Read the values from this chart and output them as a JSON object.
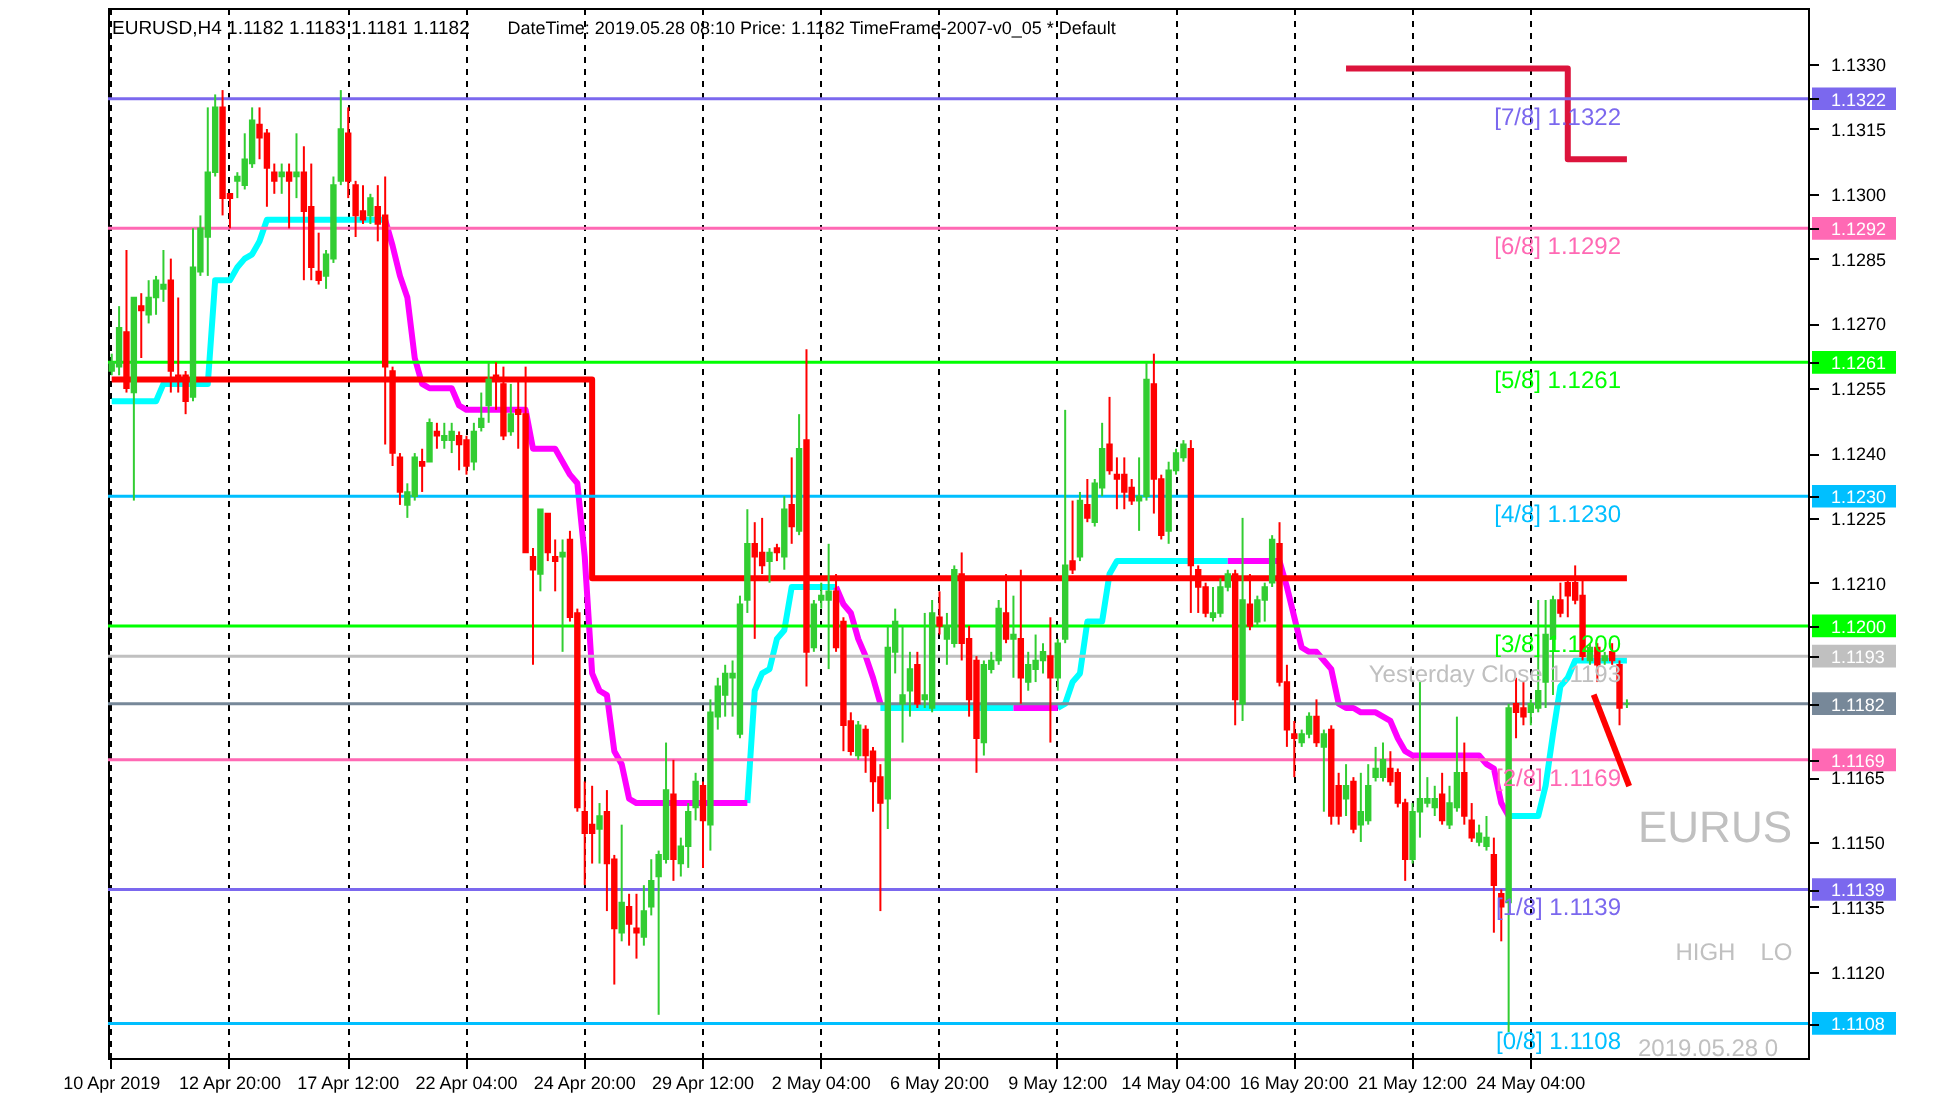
{
  "chart_data": {
    "type": "candlestick",
    "categories": [
      "10 Apr 2019",
      null,
      null,
      null,
      null,
      null,
      null,
      null,
      null,
      null,
      null,
      null,
      null,
      null,
      null,
      null,
      "12 Apr 20:00",
      null,
      null,
      null,
      null,
      null,
      null,
      null,
      null,
      null,
      null,
      null,
      null,
      null,
      null,
      null,
      "17 Apr 12:00",
      null,
      null,
      null,
      null,
      null,
      null,
      null,
      null,
      null,
      null,
      null,
      null,
      null,
      null,
      null,
      "22 Apr 04:00",
      null,
      null,
      null,
      null,
      null,
      null,
      null,
      null,
      null,
      null,
      null,
      null,
      null,
      null,
      null,
      "24 Apr 20:00",
      null,
      null,
      null,
      null,
      null,
      null,
      null,
      null,
      null,
      null,
      null,
      null,
      null,
      null,
      null,
      "29 Apr 12:00",
      null,
      null,
      null,
      null,
      null,
      null,
      null,
      null,
      null,
      null,
      null,
      null,
      null,
      null,
      null,
      "2 May 04:00",
      null,
      null,
      null,
      null,
      null,
      null,
      null,
      null,
      null,
      null,
      null,
      null,
      null,
      null,
      null,
      "6 May 20:00",
      null,
      null,
      null,
      null,
      null,
      null,
      null,
      null,
      null,
      null,
      null,
      null,
      null,
      null,
      null,
      "9 May 12:00",
      null,
      null,
      null,
      null,
      null,
      null,
      null,
      null,
      null,
      null,
      null,
      null,
      null,
      null,
      null,
      "14 May 04:00",
      null,
      null,
      null,
      null,
      null,
      null,
      null,
      null,
      null,
      null,
      null,
      null,
      null,
      null,
      null,
      "16 May 20:00",
      null,
      null,
      null,
      null,
      null,
      null,
      null,
      null,
      null,
      null,
      null,
      null,
      null,
      null,
      null,
      "21 May 12:00",
      null,
      null,
      null,
      null,
      null,
      null,
      null,
      null,
      null,
      null,
      null,
      null,
      null,
      null,
      null,
      "24 May 04:00",
      null,
      null,
      null,
      null,
      null,
      null,
      null,
      null,
      null,
      null,
      null,
      null,
      null,
      null,
      null,
      null,
      null,
      null,
      null,
      null,
      null,
      null,
      null,
      null,
      null,
      null,
      null,
      null,
      null,
      null,
      null,
      null,
      null,
      null,
      null,
      null,
      null
    ],
    "ohlc": [
      [
        1.1259,
        1.1263,
        1.1258,
        1.1261
      ],
      [
        1.126,
        1.1274,
        1.1258,
        1.1269
      ],
      [
        1.1268,
        1.1287,
        1.1254,
        1.1255
      ],
      [
        1.1254,
        1.1276,
        1.1229,
        1.1276
      ],
      [
        1.1274,
        1.1277,
        1.1262,
        1.1273
      ],
      [
        1.1272,
        1.128,
        1.127,
        1.1276
      ],
      [
        1.1276,
        1.1281,
        1.1272,
        1.128
      ],
      [
        1.1278,
        1.1287,
        1.1275,
        1.1279
      ],
      [
        1.128,
        1.1285,
        1.1254,
        1.1259
      ],
      [
        1.1258,
        1.1276,
        1.1254,
        1.1257
      ],
      [
        1.1258,
        1.1259,
        1.1249,
        1.1252
      ],
      [
        1.1253,
        1.1292,
        1.1252,
        1.1283
      ],
      [
        1.1282,
        1.1295,
        1.1281,
        1.1292
      ],
      [
        1.129,
        1.132,
        1.1281,
        1.1305
      ],
      [
        1.1305,
        1.1323,
        1.1304,
        1.132
      ],
      [
        1.132,
        1.1324,
        1.1295,
        1.1299
      ],
      [
        1.13,
        1.13,
        1.1292,
        1.1299
      ],
      [
        1.1303,
        1.1305,
        1.1299,
        1.1304
      ],
      [
        1.1302,
        1.1314,
        1.1301,
        1.1308
      ],
      [
        1.1307,
        1.132,
        1.1306,
        1.1317
      ],
      [
        1.1316,
        1.132,
        1.1308,
        1.1313
      ],
      [
        1.1314,
        1.1315,
        1.1297,
        1.1306
      ],
      [
        1.1305,
        1.1307,
        1.13,
        1.1303
      ],
      [
        1.1304,
        1.1307,
        1.13,
        1.1305
      ],
      [
        1.1305,
        1.1307,
        1.1292,
        1.1303
      ],
      [
        1.1304,
        1.1314,
        1.1299,
        1.1305
      ],
      [
        1.1305,
        1.1311,
        1.128,
        1.1296
      ],
      [
        1.1297,
        1.1307,
        1.128,
        1.1283
      ],
      [
        1.1282,
        1.1291,
        1.1279,
        1.128
      ],
      [
        1.1281,
        1.1287,
        1.1278,
        1.1286
      ],
      [
        1.1285,
        1.1304,
        1.1284,
        1.1302
      ],
      [
        1.1303,
        1.1324,
        1.1302,
        1.1315
      ],
      [
        1.1314,
        1.132,
        1.1299,
        1.1303
      ],
      [
        1.1302,
        1.1303,
        1.129,
        1.1295
      ],
      [
        1.1296,
        1.1302,
        1.1293,
        1.1294
      ],
      [
        1.1295,
        1.13,
        1.1293,
        1.1299
      ],
      [
        1.1297,
        1.1302,
        1.1289,
        1.1293
      ],
      [
        1.1295,
        1.1304,
        1.1242,
        1.126
      ],
      [
        1.1259,
        1.126,
        1.1237,
        1.124
      ],
      [
        1.1239,
        1.124,
        1.1228,
        1.1231
      ],
      [
        1.1228,
        1.1233,
        1.1225,
        1.1231
      ],
      [
        1.123,
        1.124,
        1.1229,
        1.1239
      ],
      [
        1.1238,
        1.1241,
        1.1231,
        1.1237
      ],
      [
        1.1238,
        1.1248,
        1.1238,
        1.1247
      ],
      [
        1.1245,
        1.1247,
        1.1241,
        1.1244
      ],
      [
        1.1243,
        1.1247,
        1.1241,
        1.1244
      ],
      [
        1.1243,
        1.1247,
        1.124,
        1.1245
      ],
      [
        1.1244,
        1.1245,
        1.1236,
        1.1242
      ],
      [
        1.1243,
        1.1244,
        1.1235,
        1.1237
      ],
      [
        1.1238,
        1.1247,
        1.1236,
        1.1245
      ],
      [
        1.1246,
        1.1254,
        1.1245,
        1.1248
      ],
      [
        1.1251,
        1.1261,
        1.1247,
        1.1257
      ],
      [
        1.1258,
        1.1261,
        1.125,
        1.1257
      ],
      [
        1.1256,
        1.126,
        1.1243,
        1.1244
      ],
      [
        1.1245,
        1.1256,
        1.1244,
        1.1249
      ],
      [
        1.125,
        1.1257,
        1.1241,
        1.1249
      ],
      [
        1.1249,
        1.126,
        1.1217,
        1.1217
      ],
      [
        1.1216,
        1.1218,
        1.1191,
        1.1213
      ],
      [
        1.1212,
        1.1227,
        1.1208,
        1.1227
      ],
      [
        1.1226,
        1.1226,
        1.1215,
        1.1217
      ],
      [
        1.1216,
        1.122,
        1.1208,
        1.1215
      ],
      [
        1.1216,
        1.122,
        1.1194,
        1.1217
      ],
      [
        1.122,
        1.1222,
        1.1201,
        1.1202
      ],
      [
        1.1203,
        1.1204,
        1.1157,
        1.1158
      ],
      [
        1.1157,
        1.1164,
        1.114,
        1.1152
      ],
      [
        1.1154,
        1.1163,
        1.1145,
        1.1152
      ],
      [
        1.1153,
        1.1159,
        1.1145,
        1.1156
      ],
      [
        1.1157,
        1.1162,
        1.1134,
        1.1145
      ],
      [
        1.1146,
        1.1147,
        1.1117,
        1.113
      ],
      [
        1.1129,
        1.1154,
        1.1127,
        1.1136
      ],
      [
        1.1135,
        1.1138,
        1.1126,
        1.1131
      ],
      [
        1.113,
        1.1138,
        1.1123,
        1.1129
      ],
      [
        1.1128,
        1.114,
        1.1126,
        1.1134
      ],
      [
        1.1135,
        1.1146,
        1.1133,
        1.1141
      ],
      [
        1.1142,
        1.1148,
        1.111,
        1.1147
      ],
      [
        1.1146,
        1.1173,
        1.1145,
        1.1162
      ],
      [
        1.1161,
        1.1169,
        1.1141,
        1.1146
      ],
      [
        1.1145,
        1.1151,
        1.1142,
        1.1149
      ],
      [
        1.1149,
        1.1159,
        1.1144,
        1.1157
      ],
      [
        1.1158,
        1.1166,
        1.1155,
        1.1164
      ],
      [
        1.1163,
        1.1164,
        1.1144,
        1.1155
      ],
      [
        1.1154,
        1.1183,
        1.1148,
        1.118
      ],
      [
        1.1179,
        1.1188,
        1.1176,
        1.1186
      ],
      [
        1.1184,
        1.1191,
        1.1179,
        1.1189
      ],
      [
        1.1188,
        1.1192,
        1.1179,
        1.1189
      ],
      [
        1.1175,
        1.1207,
        1.1174,
        1.1205
      ],
      [
        1.1206,
        1.1227,
        1.1203,
        1.1219
      ],
      [
        1.1219,
        1.1224,
        1.1197,
        1.1216
      ],
      [
        1.1217,
        1.1225,
        1.1212,
        1.1214
      ],
      [
        1.1215,
        1.1218,
        1.121,
        1.1217
      ],
      [
        1.1218,
        1.1219,
        1.1215,
        1.1217
      ],
      [
        1.1216,
        1.123,
        1.1213,
        1.1227
      ],
      [
        1.1228,
        1.1239,
        1.1219,
        1.1223
      ],
      [
        1.1222,
        1.1249,
        1.1221,
        1.1241
      ],
      [
        1.1243,
        1.1264,
        1.1186,
        1.1194
      ],
      [
        1.1195,
        1.1206,
        1.1194,
        1.1205
      ],
      [
        1.1206,
        1.121,
        1.1204,
        1.1207
      ],
      [
        1.1206,
        1.1219,
        1.119,
        1.1208
      ],
      [
        1.1208,
        1.1212,
        1.1194,
        1.1195
      ],
      [
        1.1201,
        1.1202,
        1.1171,
        1.1177
      ],
      [
        1.1178,
        1.118,
        1.117,
        1.1171
      ],
      [
        1.117,
        1.1178,
        1.1169,
        1.1177
      ],
      [
        1.1176,
        1.1177,
        1.1166,
        1.117
      ],
      [
        1.1171,
        1.1172,
        1.1157,
        1.1164
      ],
      [
        1.1165,
        1.1168,
        1.1134,
        1.1159
      ],
      [
        1.116,
        1.12,
        1.1153,
        1.1195
      ],
      [
        1.1194,
        1.1204,
        1.1189,
        1.1201
      ],
      [
        1.1182,
        1.12,
        1.1173,
        1.1184
      ],
      [
        1.1185,
        1.1194,
        1.1179,
        1.119
      ],
      [
        1.1191,
        1.1194,
        1.1181,
        1.1182
      ],
      [
        1.1183,
        1.1203,
        1.1181,
        1.1184
      ],
      [
        1.1181,
        1.1206,
        1.118,
        1.1203
      ],
      [
        1.1202,
        1.1208,
        1.1198,
        1.12
      ],
      [
        1.1197,
        1.1203,
        1.1191,
        1.12
      ],
      [
        1.1196,
        1.1214,
        1.1195,
        1.1213
      ],
      [
        1.1212,
        1.1217,
        1.1192,
        1.1196
      ],
      [
        1.1197,
        1.12,
        1.1179,
        1.1183
      ],
      [
        1.1192,
        1.1193,
        1.1166,
        1.1174
      ],
      [
        1.1173,
        1.1192,
        1.117,
        1.1191
      ],
      [
        1.119,
        1.1194,
        1.1189,
        1.1192
      ],
      [
        1.1192,
        1.1206,
        1.1191,
        1.1204
      ],
      [
        1.1203,
        1.1212,
        1.1196,
        1.1197
      ],
      [
        1.1197,
        1.1207,
        1.1188,
        1.1198
      ],
      [
        1.1197,
        1.1213,
        1.1182,
        1.1188
      ],
      [
        1.1187,
        1.1194,
        1.1185,
        1.1191
      ],
      [
        1.119,
        1.1198,
        1.1187,
        1.1192
      ],
      [
        1.1192,
        1.1196,
        1.1189,
        1.1194
      ],
      [
        1.1193,
        1.1202,
        1.1173,
        1.1188
      ],
      [
        1.1188,
        1.1197,
        1.1185,
        1.1196
      ],
      [
        1.1197,
        1.125,
        1.1196,
        1.1214
      ],
      [
        1.1215,
        1.1229,
        1.1212,
        1.1213
      ],
      [
        1.1216,
        1.1231,
        1.1215,
        1.1229
      ],
      [
        1.1228,
        1.1234,
        1.1224,
        1.1225
      ],
      [
        1.1224,
        1.1234,
        1.1223,
        1.1233
      ],
      [
        1.1232,
        1.1247,
        1.123,
        1.1241
      ],
      [
        1.1242,
        1.1253,
        1.1235,
        1.1236
      ],
      [
        1.1235,
        1.1239,
        1.1227,
        1.1234
      ],
      [
        1.1235,
        1.1239,
        1.1227,
        1.1231
      ],
      [
        1.1232,
        1.1234,
        1.1228,
        1.1229
      ],
      [
        1.1229,
        1.1239,
        1.1222,
        1.123
      ],
      [
        1.123,
        1.1261,
        1.1229,
        1.1257
      ],
      [
        1.1256,
        1.1263,
        1.1226,
        1.1234
      ],
      [
        1.1234,
        1.1235,
        1.122,
        1.1221
      ],
      [
        1.1222,
        1.1238,
        1.1219,
        1.1236
      ],
      [
        1.1236,
        1.1241,
        1.1235,
        1.124
      ],
      [
        1.1239,
        1.1243,
        1.1238,
        1.1242
      ],
      [
        1.1241,
        1.1243,
        1.1203,
        1.1214
      ],
      [
        1.1213,
        1.1214,
        1.1203,
        1.1209
      ],
      [
        1.1209,
        1.121,
        1.1202,
        1.1203
      ],
      [
        1.1202,
        1.1209,
        1.1201,
        1.1203
      ],
      [
        1.1203,
        1.1211,
        1.1202,
        1.1209
      ],
      [
        1.1209,
        1.1213,
        1.1208,
        1.1212
      ],
      [
        1.1212,
        1.1213,
        1.1177,
        1.1183
      ],
      [
        1.1182,
        1.1225,
        1.1178,
        1.1206
      ],
      [
        1.1205,
        1.1212,
        1.1199,
        1.12
      ],
      [
        1.1201,
        1.1207,
        1.12,
        1.1206
      ],
      [
        1.1206,
        1.121,
        1.1201,
        1.1209
      ],
      [
        1.121,
        1.1221,
        1.1209,
        1.122
      ],
      [
        1.1219,
        1.1224,
        1.1186,
        1.1187
      ],
      [
        1.1187,
        1.1191,
        1.1172,
        1.1176
      ],
      [
        1.1175,
        1.1178,
        1.1165,
        1.1174
      ],
      [
        1.1173,
        1.1176,
        1.1172,
        1.1175
      ],
      [
        1.1175,
        1.118,
        1.1174,
        1.1179
      ],
      [
        1.1179,
        1.1183,
        1.1172,
        1.1173
      ],
      [
        1.1172,
        1.1176,
        1.1157,
        1.1175
      ],
      [
        1.1176,
        1.1177,
        1.1154,
        1.1156
      ],
      [
        1.1163,
        1.1166,
        1.1154,
        1.1156
      ],
      [
        1.116,
        1.1168,
        1.1156,
        1.1163
      ],
      [
        1.1164,
        1.1165,
        1.1152,
        1.1153
      ],
      [
        1.1154,
        1.1166,
        1.115,
        1.1157
      ],
      [
        1.1155,
        1.1168,
        1.1154,
        1.1163
      ],
      [
        1.1165,
        1.1172,
        1.1164,
        1.1167
      ],
      [
        1.1165,
        1.1173,
        1.1164,
        1.1169
      ],
      [
        1.1167,
        1.1171,
        1.1163,
        1.1164
      ],
      [
        1.1166,
        1.1167,
        1.1158,
        1.1159
      ],
      [
        1.1159,
        1.116,
        1.1141,
        1.1146
      ],
      [
        1.1146,
        1.1159,
        1.1145,
        1.1157
      ],
      [
        1.1157,
        1.1187,
        1.1151,
        1.116
      ],
      [
        1.1159,
        1.1165,
        1.1158,
        1.116
      ],
      [
        1.1158,
        1.1163,
        1.1156,
        1.116
      ],
      [
        1.1161,
        1.1166,
        1.1154,
        1.1155
      ],
      [
        1.1154,
        1.1163,
        1.1153,
        1.1159
      ],
      [
        1.1158,
        1.1179,
        1.1157,
        1.1166
      ],
      [
        1.1166,
        1.1173,
        1.1154,
        1.1156
      ],
      [
        1.1155,
        1.1159,
        1.115,
        1.1151
      ],
      [
        1.115,
        1.1154,
        1.1149,
        1.1152
      ],
      [
        1.1149,
        1.1156,
        1.1148,
        1.1151
      ],
      [
        1.1147,
        1.1151,
        1.1129,
        1.114
      ],
      [
        1.1138,
        1.1139,
        1.1127,
        1.1135
      ],
      [
        1.1136,
        1.1182,
        1.1106,
        1.1181
      ],
      [
        1.1182,
        1.1188,
        1.1174,
        1.118
      ],
      [
        1.1181,
        1.1187,
        1.1177,
        1.1179
      ],
      [
        1.118,
        1.1183,
        1.1177,
        1.1182
      ],
      [
        1.1181,
        1.1206,
        1.118,
        1.1185
      ],
      [
        1.1187,
        1.1206,
        1.1181,
        1.1198
      ],
      [
        1.1197,
        1.1207,
        1.1184,
        1.1206
      ],
      [
        1.1206,
        1.121,
        1.1202,
        1.1203
      ],
      [
        1.121,
        1.1211,
        1.1202,
        1.1207
      ],
      [
        1.121,
        1.1214,
        1.1205,
        1.1206
      ],
      [
        1.1207,
        1.1211,
        1.1192,
        1.1193
      ],
      [
        1.1192,
        1.1196,
        1.1191,
        1.1195
      ],
      [
        1.1195,
        1.1196,
        1.1187,
        1.1191
      ],
      [
        1.1192,
        1.1194,
        1.1191,
        1.1193
      ],
      [
        1.1194,
        1.1196,
        1.1191,
        1.1192
      ],
      [
        1.1191,
        1.1192,
        1.1177,
        1.1181
      ],
      [
        1.1182,
        1.1183,
        1.1181,
        1.1182
      ],
      null,
      null,
      null,
      null,
      null,
      null,
      null,
      null,
      null,
      null,
      null,
      null,
      null,
      null,
      null,
      null,
      null,
      null,
      null,
      null,
      null,
      null,
      null,
      null
    ],
    "series": [
      {
        "type": "line",
        "color": "#00ffff",
        "values": [
          1.1252,
          1.1252,
          1.1252,
          1.1252,
          1.1252,
          1.1252,
          1.1252,
          1.1256,
          1.1256,
          1.1256,
          1.1256,
          1.1256,
          1.1256,
          1.1256,
          1.128,
          1.128,
          1.128,
          1.1283,
          1.1285,
          1.1286,
          1.1289,
          1.1294,
          1.1294,
          1.1294,
          1.1294,
          1.1294,
          1.1294,
          1.1294,
          1.1294,
          1.1294,
          1.1294,
          1.1294,
          1.1294,
          1.1294,
          1.1294,
          1.1294,
          1.1294,
          1.1294,
          null,
          null,
          null,
          null,
          null,
          null,
          null,
          null,
          null,
          null,
          null,
          null,
          null,
          null,
          null,
          null,
          null,
          null,
          null,
          null,
          null,
          null,
          null,
          null,
          null,
          null,
          null,
          null,
          null,
          null,
          null,
          null,
          null,
          null,
          null,
          null,
          null,
          null,
          null,
          null,
          null,
          null,
          null,
          null,
          null,
          null,
          null,
          null,
          1.1159,
          1.1185,
          1.1189,
          1.119,
          1.1197,
          1.1199,
          1.1209,
          1.1209,
          1.1209,
          1.1209,
          1.1209,
          1.1209,
          1.1209,
          null,
          null,
          null,
          null,
          null,
          1.1181,
          1.1181,
          1.1181,
          1.1181,
          1.1181,
          1.1181,
          1.1181,
          1.1181,
          1.1181,
          1.1181,
          1.1181,
          1.1181,
          1.1181,
          1.1181,
          1.1181,
          1.1181,
          1.1181,
          1.1181,
          1.1181,
          null,
          null,
          null,
          null,
          null,
          1.1181,
          1.1182,
          1.1187,
          1.1189,
          1.1201,
          1.1201,
          1.1201,
          1.1212,
          1.1215,
          1.1215,
          1.1215,
          1.1215,
          1.1215,
          1.1215,
          1.1215,
          1.1215,
          1.1215,
          1.1215,
          1.1215,
          1.1215,
          1.1215,
          1.1215,
          1.1215,
          1.1215,
          null,
          null,
          null,
          null,
          null,
          null,
          null,
          null,
          null,
          null,
          null,
          null,
          null,
          null,
          null,
          null,
          null,
          null,
          null,
          null,
          null,
          null,
          null,
          null,
          null,
          null,
          null,
          null,
          null,
          null,
          null,
          null,
          null,
          null,
          null,
          null,
          null,
          1.1156,
          1.1156,
          1.1156,
          1.1156,
          1.1156,
          1.1163,
          1.1175,
          1.1186,
          1.1188,
          1.1192,
          1.1192,
          1.1192,
          1.1192,
          1.1192,
          1.1192,
          1.1192,
          1.1192,
          null,
          null,
          null,
          null,
          null,
          null,
          null,
          null,
          null,
          null,
          null,
          null,
          null,
          null,
          null,
          null,
          null,
          null,
          null,
          null,
          null,
          null,
          null,
          null
        ]
      },
      {
        "type": "line",
        "color": "#ff00ff",
        "values": [
          null,
          null,
          null,
          null,
          null,
          null,
          null,
          null,
          null,
          null,
          null,
          null,
          null,
          null,
          null,
          null,
          null,
          null,
          null,
          null,
          null,
          null,
          null,
          null,
          null,
          null,
          null,
          null,
          null,
          null,
          null,
          null,
          null,
          null,
          null,
          null,
          null,
          1.1294,
          1.1288,
          1.1281,
          1.1276,
          1.1262,
          1.1256,
          1.1255,
          1.1255,
          1.1255,
          1.1255,
          1.1251,
          1.125,
          1.125,
          1.125,
          1.125,
          1.125,
          1.125,
          1.125,
          1.125,
          1.125,
          1.1241,
          1.1241,
          1.1241,
          1.1241,
          1.1238,
          1.1235,
          1.1233,
          1.1216,
          1.1189,
          1.1185,
          1.1184,
          1.1171,
          1.1168,
          1.116,
          1.1159,
          1.1159,
          1.1159,
          1.1159,
          1.1159,
          1.1159,
          1.1159,
          1.1159,
          1.1159,
          1.1159,
          1.1159,
          1.1159,
          1.1159,
          1.1159,
          1.1159,
          1.1159,
          null,
          null,
          null,
          null,
          null,
          null,
          null,
          null,
          null,
          null,
          null,
          1.1209,
          1.1205,
          1.1203,
          1.1197,
          1.1193,
          1.1188,
          1.1182,
          null,
          null,
          null,
          null,
          null,
          null,
          null,
          null,
          null,
          null,
          null,
          null,
          null,
          null,
          null,
          null,
          null,
          1.1181,
          1.1181,
          1.1181,
          1.1181,
          1.1181,
          1.1181,
          1.1181,
          null,
          null,
          null,
          null,
          null,
          null,
          null,
          null,
          null,
          null,
          null,
          null,
          null,
          null,
          null,
          null,
          null,
          null,
          null,
          null,
          null,
          null,
          1.1215,
          1.1215,
          1.1215,
          1.1215,
          1.1215,
          1.1215,
          1.1215,
          1.1215,
          1.1209,
          1.1202,
          1.1195,
          1.1194,
          1.1194,
          1.1192,
          1.119,
          1.1182,
          1.1181,
          1.1181,
          1.118,
          1.118,
          1.118,
          1.1179,
          1.1178,
          1.1174,
          1.1171,
          1.117,
          1.117,
          1.117,
          1.117,
          1.117,
          1.117,
          1.117,
          1.117,
          1.117,
          1.117,
          1.1168,
          1.1167,
          1.1159,
          1.1156,
          null,
          null,
          null,
          null,
          null,
          null,
          null,
          null,
          null,
          null,
          null,
          null,
          null,
          null,
          null,
          null,
          null,
          null,
          null,
          null,
          null,
          null,
          null,
          null,
          null,
          null,
          null,
          null,
          null,
          null,
          null,
          null,
          null,
          null,
          null,
          null,
          null,
          null,
          null,
          null
        ]
      },
      {
        "type": "step",
        "color": "#ff0000",
        "values": [
          1.1257,
          1.1257,
          1.1257,
          1.1257,
          1.1257,
          1.1257,
          1.1257,
          1.1257,
          1.1257,
          1.1257,
          1.1257,
          1.1257,
          1.1257,
          1.1257,
          1.1257,
          1.1257,
          1.1257,
          1.1257,
          1.1257,
          1.1257,
          1.1257,
          1.1257,
          1.1257,
          1.1257,
          1.1257,
          1.1257,
          1.1257,
          1.1257,
          1.1257,
          1.1257,
          1.1257,
          1.1257,
          1.1257,
          1.1257,
          1.1257,
          1.1257,
          1.1257,
          1.1257,
          1.1257,
          1.1257,
          1.1257,
          1.1257,
          1.1257,
          1.1257,
          1.1257,
          1.1257,
          1.1257,
          1.1257,
          1.1257,
          1.1257,
          1.1257,
          1.1257,
          1.1257,
          1.1257,
          1.1257,
          1.1257,
          1.1257,
          1.1257,
          1.1257,
          1.1257,
          1.1257,
          1.1257,
          1.1257,
          1.1257,
          1.1257,
          1.1211,
          1.1211,
          1.1211,
          1.1211,
          1.1211,
          1.1211,
          1.1211,
          1.1211,
          1.1211,
          1.1211,
          1.1211,
          1.1211,
          1.1211,
          1.1211,
          1.1211,
          1.1211,
          1.1211,
          1.1211,
          1.1211,
          1.1211,
          1.1211,
          1.1211,
          1.1211,
          1.1211,
          1.1211,
          1.1211,
          1.1211,
          1.1211,
          1.1211,
          1.1211,
          1.1211,
          1.1211,
          1.1211,
          1.1211,
          1.1211,
          1.1211,
          1.1211,
          1.1211,
          1.1211,
          1.1211,
          1.1211,
          1.1211,
          1.1211,
          1.1211,
          1.1211,
          1.1211,
          1.1211,
          1.1211,
          1.1211,
          1.1211,
          1.1211,
          1.1211,
          1.1211,
          1.1211,
          1.1211,
          1.1211,
          1.1211,
          1.1211,
          1.1211,
          1.1211,
          1.1211,
          1.1211,
          1.1211,
          1.1211,
          1.1211,
          1.1211,
          1.1211,
          1.1211,
          1.1211,
          1.1211,
          1.1211,
          1.1211,
          1.1211,
          1.1211,
          1.1211,
          1.1211,
          1.1211,
          1.1211,
          1.1211,
          1.1211,
          1.1211,
          1.1211,
          1.1211,
          1.1211,
          1.1211,
          1.1211,
          1.1211,
          1.1211,
          1.1211,
          1.1211,
          1.1211,
          1.1211,
          1.1211,
          1.1211,
          1.1211,
          1.1211,
          1.1211,
          1.1211,
          1.1211,
          1.1211,
          1.1211,
          1.1211,
          1.1211,
          1.1211,
          1.1211,
          1.1211,
          1.1211,
          1.1211,
          1.1211,
          1.1211,
          1.1211,
          1.1211,
          1.1211,
          1.1211,
          1.1211,
          1.1211,
          1.1211,
          1.1211,
          1.1211,
          1.1211,
          1.1211,
          1.1211,
          1.1211,
          1.1211,
          1.1211,
          1.1211,
          1.1211,
          1.1211,
          1.1211,
          1.1211,
          1.1211,
          1.1211,
          1.1211,
          1.1211,
          1.1211,
          1.1211,
          1.1211,
          1.1211,
          1.1211,
          1.1211,
          1.1211,
          null,
          null,
          null,
          null,
          null,
          null,
          null,
          null,
          null,
          null,
          null,
          null,
          null,
          null,
          null,
          null,
          null,
          null,
          null,
          null,
          null,
          null,
          null,
          null
        ]
      },
      {
        "type": "step",
        "color": "#dc143c",
        "values": [
          null,
          null,
          null,
          null,
          null,
          null,
          null,
          null,
          null,
          null,
          null,
          null,
          null,
          null,
          null,
          null,
          null,
          null,
          null,
          null,
          null,
          null,
          null,
          null,
          null,
          null,
          null,
          null,
          null,
          null,
          null,
          null,
          null,
          null,
          null,
          null,
          null,
          null,
          null,
          null,
          null,
          null,
          null,
          null,
          null,
          null,
          null,
          null,
          null,
          null,
          null,
          null,
          null,
          null,
          null,
          null,
          null,
          null,
          null,
          null,
          null,
          null,
          null,
          null,
          null,
          null,
          null,
          null,
          null,
          null,
          null,
          null,
          null,
          null,
          null,
          null,
          null,
          null,
          null,
          null,
          null,
          null,
          null,
          null,
          null,
          null,
          null,
          null,
          null,
          null,
          null,
          null,
          null,
          null,
          null,
          null,
          null,
          null,
          null,
          null,
          null,
          null,
          null,
          null,
          null,
          null,
          null,
          null,
          null,
          null,
          null,
          null,
          null,
          null,
          null,
          null,
          null,
          null,
          null,
          null,
          null,
          null,
          null,
          null,
          null,
          null,
          null,
          null,
          null,
          null,
          null,
          null,
          null,
          null,
          null,
          null,
          null,
          null,
          null,
          null,
          null,
          null,
          null,
          null,
          null,
          null,
          null,
          null,
          null,
          null,
          null,
          null,
          null,
          null,
          null,
          null,
          null,
          null,
          null,
          null,
          null,
          null,
          null,
          null,
          null,
          null,
          null,
          1.1329,
          1.1329,
          1.1329,
          1.1329,
          1.1329,
          1.1329,
          1.1329,
          1.1329,
          1.1329,
          1.1329,
          1.1329,
          1.1329,
          1.1329,
          1.1329,
          1.1329,
          1.1329,
          1.1329,
          1.1329,
          1.1329,
          1.1329,
          1.1329,
          1.1329,
          1.1329,
          1.1329,
          1.1329,
          1.1329,
          1.1329,
          1.1329,
          1.1329,
          1.1329,
          1.1308,
          1.1308,
          1.1308,
          1.1308,
          1.1308,
          1.1308,
          1.1308,
          1.1308,
          1.1308,
          null,
          null,
          null,
          null,
          null,
          null,
          null,
          null,
          null,
          null,
          null,
          null,
          null,
          null,
          null,
          null,
          null,
          null,
          null,
          null,
          null,
          null,
          null,
          null
        ]
      }
    ],
    "ref_lines": [
      {
        "axis": "y",
        "value": 1.1322,
        "label": "[7/8] 1.1322",
        "color": "#7b68ee"
      },
      {
        "axis": "y",
        "value": 1.1292,
        "label": "[6/8] 1.1292",
        "color": "#ff69b4"
      },
      {
        "axis": "y",
        "value": 1.1261,
        "label": "[5/8] 1.1261",
        "color": "#00ff00"
      },
      {
        "axis": "y",
        "value": 1.123,
        "label": "[4/8] 1.1230",
        "color": "#00bfff"
      },
      {
        "axis": "y",
        "value": 1.12,
        "label": "[3/8] 1.1200",
        "color": "#00ff00"
      },
      {
        "axis": "y",
        "value": 1.1193,
        "label": "Yesterday Close 1.1193",
        "color": "#c0c0c0"
      },
      {
        "axis": "y",
        "value": 1.1182,
        "label": null,
        "color": "#778899"
      },
      {
        "axis": "y",
        "value": 1.1169,
        "label": "[2/8] 1.1169",
        "color": "#ff69b4"
      },
      {
        "axis": "y",
        "value": 1.1139,
        "label": "[1/8] 1.1139",
        "color": "#7b68ee"
      },
      {
        "axis": "y",
        "value": 1.1108,
        "label": "[0/8] 1.1108",
        "color": "#00bfff"
      }
    ],
    "annotations": [
      "EURUSD,H4  1.1182 1.1183 1.1181 1.1182",
      "DateTime: 2019.05.28 08:10   Price: 1.1182   TimeFrame-2007-v0_05   *  Default",
      "EURUS",
      "HIGH",
      "LO",
      "2019.05.28 0"
    ],
    "ylim": [
      1.11,
      1.1343
    ],
    "yticks": [
      1.1108,
      {
        "value": 1.112,
        "label": "1.1120"
      },
      1.1135,
      1.1139,
      {
        "value": 1.115,
        "label": "1.1150"
      },
      1.1165,
      1.1169,
      1.1182,
      1.1193,
      {
        "value": 1.12,
        "label": "1.1200"
      },
      {
        "value": 1.121,
        "label": "1.1210"
      },
      1.1225,
      {
        "value": 1.123,
        "label": "1.1230"
      },
      {
        "value": 1.124,
        "label": "1.1240"
      },
      1.1255,
      1.1261,
      {
        "value": 1.127,
        "label": "1.1270"
      },
      1.1285,
      1.1292,
      {
        "value": 1.13,
        "label": "1.1300"
      },
      1.1315,
      1.1322,
      {
        "value": 1.133,
        "label": "1.1330"
      }
    ],
    "grid": "x"
  }
}
